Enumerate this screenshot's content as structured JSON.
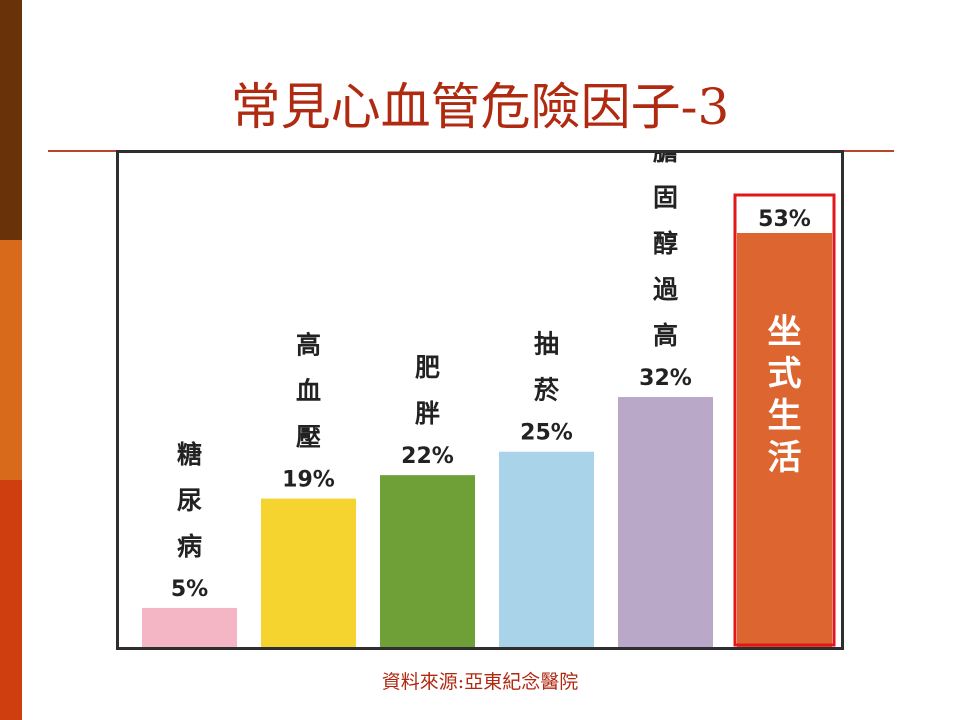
{
  "slide": {
    "title": "常見心血管危險因子-3",
    "source": "資料來源:亞東紀念醫院"
  },
  "chart_data": {
    "type": "bar",
    "title": "",
    "xlabel": "",
    "ylabel": "",
    "categories": [
      "糖尿病",
      "高血壓",
      "肥胖",
      "抽菸",
      "膽固醇過高",
      "坐式生活"
    ],
    "values": [
      5,
      19,
      22,
      25,
      32,
      53
    ],
    "value_labels": [
      "5%",
      "19%",
      "22%",
      "25%",
      "32%",
      "53%"
    ],
    "colors": [
      "#f4b6c4",
      "#f5d430",
      "#6f9f37",
      "#a9d3e8",
      "#baa8c9",
      "#dd6530"
    ],
    "highlight_index": 5,
    "highlight_color": "#e3161a",
    "highlight_label_color": "#ffffff",
    "ylim": [
      0,
      53
    ],
    "grid": false,
    "legend": "none"
  },
  "theme": {
    "stripe_colors": [
      "#6a3208",
      "#d86a1c",
      "#cf3e0e"
    ]
  }
}
